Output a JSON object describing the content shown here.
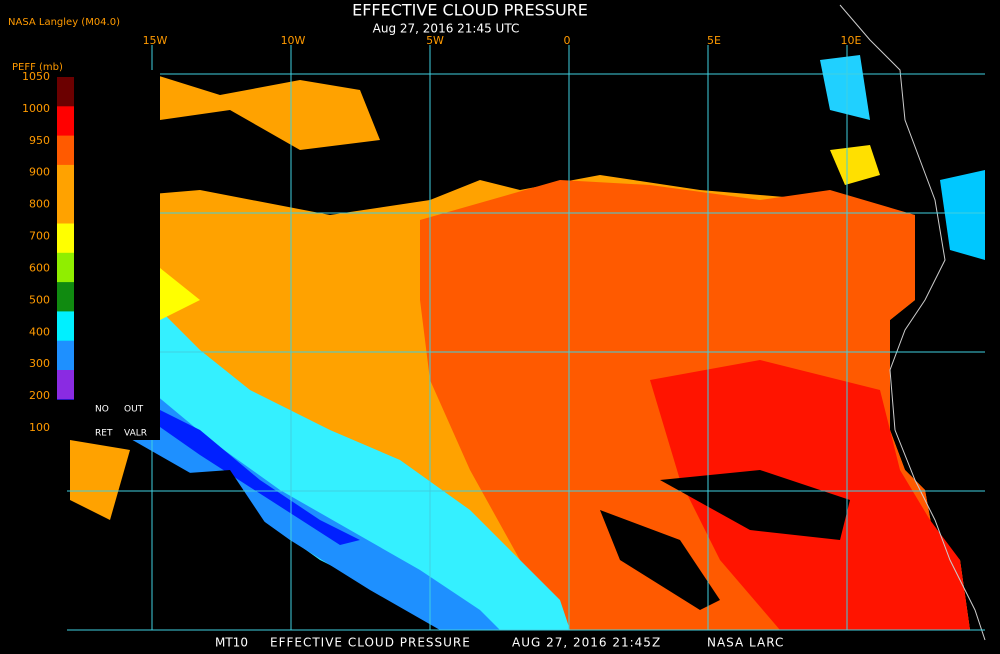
{
  "header": {
    "source": "NASA Langley (M04.0)",
    "title": "EFFECTIVE CLOUD PRESSURE",
    "date": "Aug 27, 2016 21:45 UTC"
  },
  "longitude_labels": [
    "15W",
    "10W",
    "5W",
    "0",
    "5E",
    "10E"
  ],
  "legend": {
    "title": "PEFF (mb)",
    "labels": [
      "1050",
      "1000",
      "950",
      "900",
      "800",
      "700",
      "600",
      "500",
      "400",
      "300",
      "200",
      "100"
    ],
    "notes": [
      "NO",
      "OUT",
      "RET",
      "VALR"
    ]
  },
  "footer": {
    "product": "MT10",
    "title": "EFFECTIVE CLOUD PRESSURE",
    "date": "AUG 27, 2016 21:45Z",
    "agency": "NASA LARC"
  }
}
